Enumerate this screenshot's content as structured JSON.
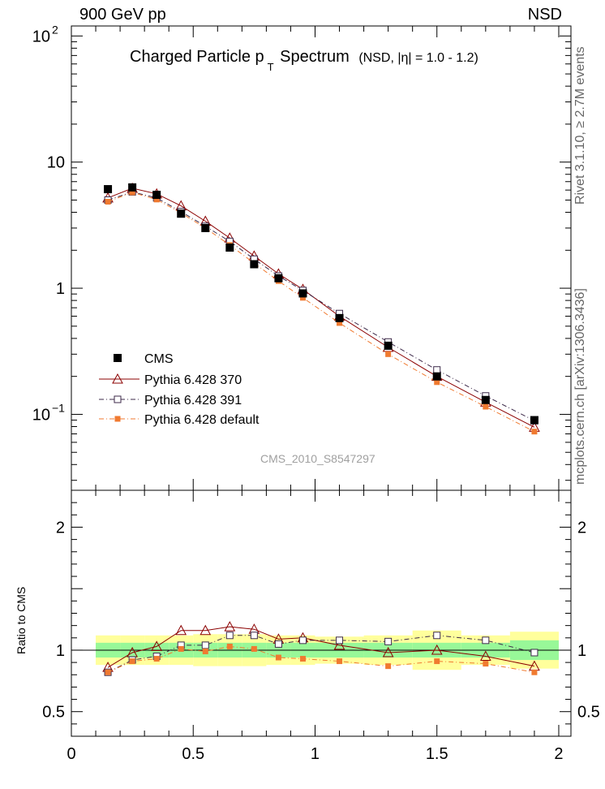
{
  "header": {
    "left": "900 GeV pp",
    "right": "NSD"
  },
  "title": {
    "main_a": "Charged Particle p",
    "main_sub": "T",
    "main_b": " Spectrum",
    "small": "(NSD, |η| = 1.0 - 1.2)"
  },
  "watermark": "CMS_2010_S8547297",
  "side_labels": {
    "rivet": "Rivet 3.1.10, ≥ 2.7M events",
    "mcplots": "mcplots.cern.ch [arXiv:1306.3436]"
  },
  "ratio_ylabel": "Ratio to CMS",
  "colors": {
    "cms": "#000000",
    "p370": "#8b0000",
    "p391": "#3d2a4a",
    "pdef": "#f07a30",
    "band_inner": "#98f898",
    "band_outer": "#ffff9c"
  },
  "chart_data": [
    {
      "type": "scatter",
      "panel": "main",
      "yscale": "log",
      "xlim": [
        0,
        2.05
      ],
      "ylim": [
        0.025,
        120
      ],
      "x_ticks": [
        "0",
        "0.5",
        "1",
        "1.5",
        "2"
      ],
      "y_ticks": [
        {
          "value": 100,
          "label": "10",
          "sup": "2"
        },
        {
          "value": 10,
          "label": "10",
          "sup": ""
        },
        {
          "value": 1,
          "label": "1",
          "sup": ""
        },
        {
          "value": 0.1,
          "label": "10",
          "sup": "−1"
        }
      ],
      "x": [
        0.15,
        0.25,
        0.35,
        0.45,
        0.55,
        0.65,
        0.75,
        0.85,
        0.95,
        1.1,
        1.3,
        1.5,
        1.7,
        1.9
      ],
      "legend_position": "bottom-left",
      "series": [
        {
          "name": "CMS",
          "key": "cms",
          "marker": "square-filled",
          "values": [
            6.1,
            6.3,
            5.5,
            3.9,
            3.0,
            2.1,
            1.55,
            1.2,
            0.91,
            0.58,
            0.35,
            0.2,
            0.13,
            0.09
          ]
        },
        {
          "name": "Pythia 6.428 370",
          "key": "p370",
          "marker": "triangle-open",
          "line": "solid",
          "values": [
            5.2,
            6.2,
            5.6,
            4.5,
            3.4,
            2.5,
            1.8,
            1.3,
            0.98,
            0.6,
            0.34,
            0.2,
            0.125,
            0.079
          ]
        },
        {
          "name": "Pythia 6.428 391",
          "key": "p391",
          "marker": "square-open",
          "line": "dashdot",
          "values": [
            5.0,
            5.8,
            5.2,
            4.05,
            3.1,
            2.35,
            1.7,
            1.25,
            0.96,
            0.63,
            0.375,
            0.225,
            0.14,
            0.089
          ]
        },
        {
          "name": "Pythia 6.428 default",
          "key": "pdef",
          "marker": "square-filled",
          "line": "dashdot",
          "values": [
            4.85,
            5.75,
            5.05,
            3.95,
            3.0,
            2.2,
            1.58,
            1.14,
            0.84,
            0.53,
            0.3,
            0.18,
            0.115,
            0.073
          ]
        }
      ]
    },
    {
      "type": "scatter",
      "panel": "ratio",
      "yscale": "linear",
      "xlim": [
        0,
        2.05
      ],
      "ylim": [
        0.3,
        2.3
      ],
      "x_ticks": [
        "0",
        "0.5",
        "1",
        "1.5",
        "2"
      ],
      "y_ticks": [
        "0.5",
        "1",
        "2"
      ],
      "x": [
        0.15,
        0.25,
        0.35,
        0.45,
        0.55,
        0.65,
        0.75,
        0.85,
        0.95,
        1.1,
        1.3,
        1.5,
        1.7,
        1.9
      ],
      "bands": {
        "edges": [
          0.1,
          0.2,
          0.3,
          0.4,
          0.5,
          0.6,
          0.7,
          0.8,
          0.9,
          1.0,
          1.2,
          1.4,
          1.6,
          1.8,
          2.0
        ],
        "inner_half_width": [
          0.06,
          0.06,
          0.06,
          0.06,
          0.06,
          0.06,
          0.06,
          0.06,
          0.06,
          0.06,
          0.06,
          0.06,
          0.06,
          0.08
        ],
        "outer_half_width": [
          0.12,
          0.12,
          0.12,
          0.12,
          0.13,
          0.13,
          0.13,
          0.12,
          0.12,
          0.11,
          0.12,
          0.16,
          0.12,
          0.15
        ]
      },
      "series": [
        {
          "name": "Pythia 6.428 370",
          "key": "p370",
          "marker": "triangle-open",
          "line": "solid",
          "values": [
            0.86,
            0.98,
            1.03,
            1.16,
            1.16,
            1.19,
            1.17,
            1.09,
            1.1,
            1.04,
            0.98,
            1.0,
            0.95,
            0.87
          ]
        },
        {
          "name": "Pythia 6.428 391",
          "key": "p391",
          "marker": "square-open",
          "line": "dashdot",
          "values": [
            0.82,
            0.92,
            0.95,
            1.04,
            1.04,
            1.12,
            1.12,
            1.05,
            1.08,
            1.08,
            1.07,
            1.12,
            1.08,
            0.98
          ]
        },
        {
          "name": "Pythia 6.428 default",
          "key": "pdef",
          "marker": "square-filled",
          "line": "dashdot",
          "values": [
            0.82,
            0.91,
            0.93,
            1.01,
            0.99,
            1.03,
            1.01,
            0.94,
            0.93,
            0.91,
            0.87,
            0.91,
            0.89,
            0.82
          ]
        }
      ]
    }
  ]
}
